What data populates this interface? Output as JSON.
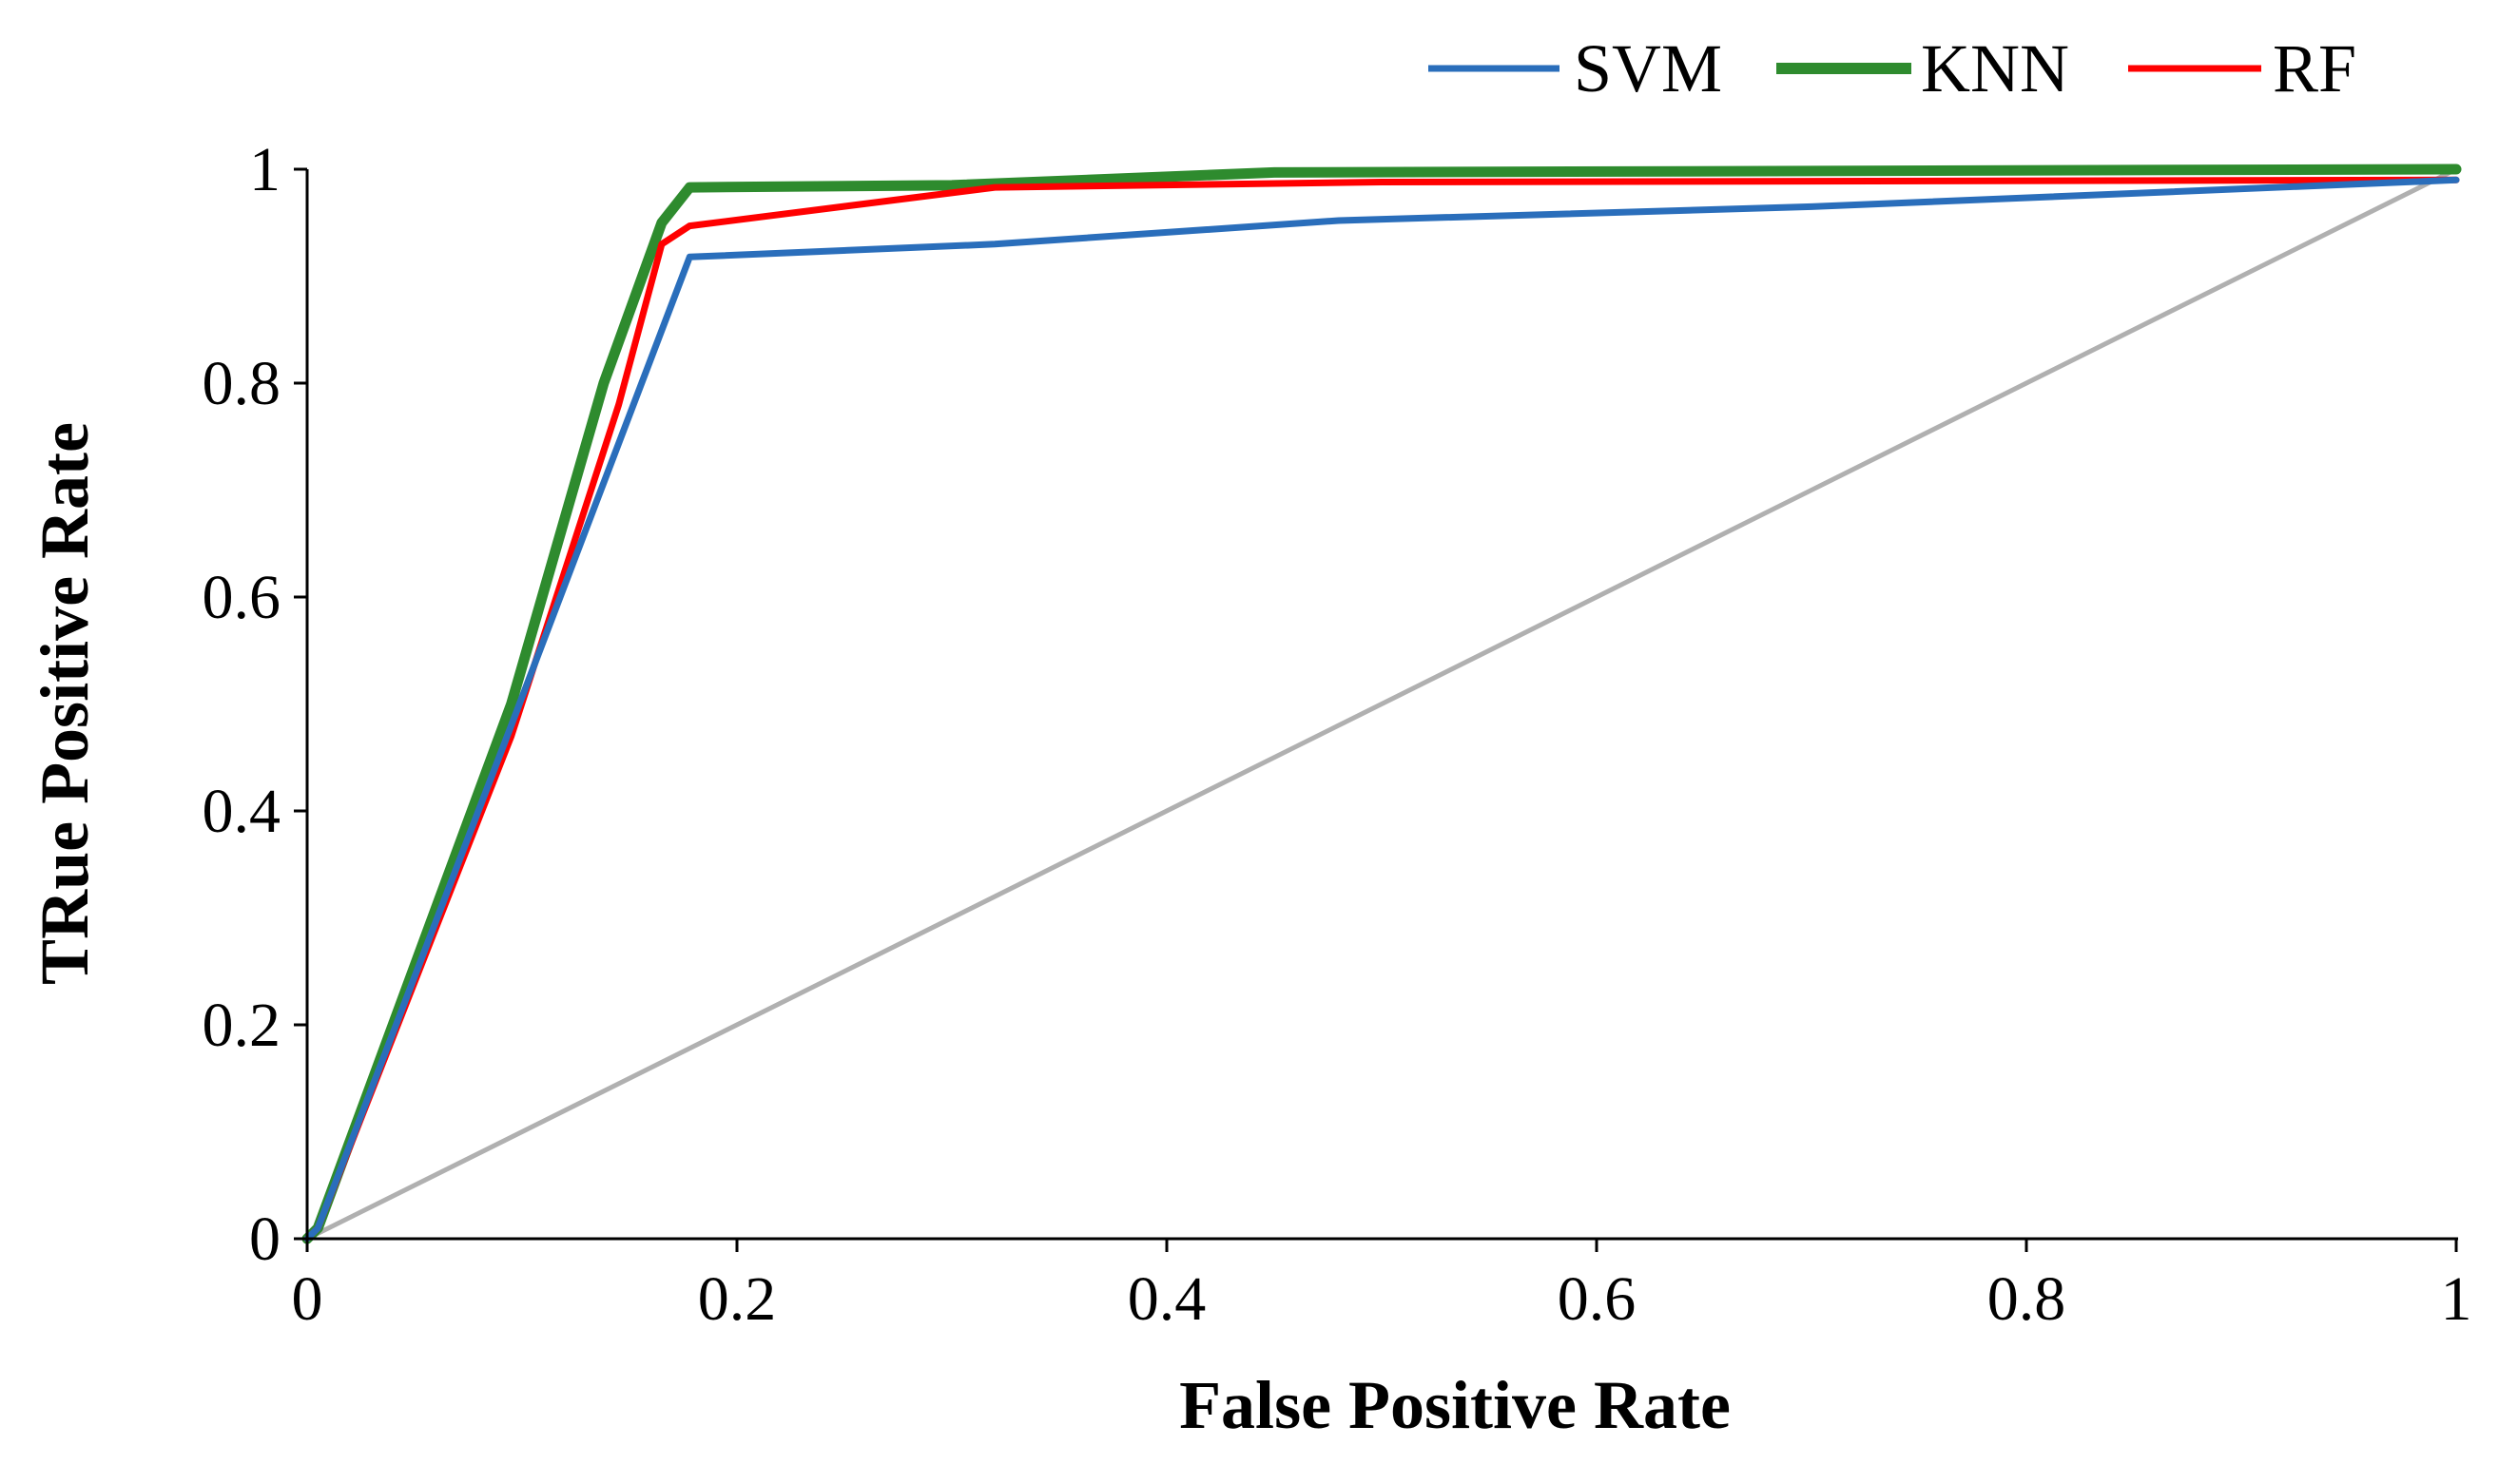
{
  "chart_data": {
    "type": "line",
    "title": "",
    "xlabel": "False Positive Rate",
    "ylabel": "TRue Positive Rate",
    "xlim": [
      0,
      1
    ],
    "ylim": [
      0,
      1
    ],
    "x_ticks": [
      "0",
      "0.2",
      "0.4",
      "0.6",
      "0.8",
      "1"
    ],
    "y_ticks": [
      "0",
      "0.2",
      "0.4",
      "0.6",
      "0.8",
      "1"
    ],
    "grid": false,
    "legend_position": "top-right",
    "series": [
      {
        "name": "SVM",
        "color": "#2a6ebb",
        "points": [
          [
            0,
            0
          ],
          [
            0.005,
            0.01
          ],
          [
            0.095,
            0.48
          ],
          [
            0.178,
            0.918
          ],
          [
            0.32,
            0.93
          ],
          [
            0.48,
            0.952
          ],
          [
            0.7,
            0.965
          ],
          [
            1.0,
            0.99
          ]
        ]
      },
      {
        "name": "KNN",
        "color": "#2e8b2e",
        "points": [
          [
            0,
            0
          ],
          [
            0.005,
            0.01
          ],
          [
            0.095,
            0.5
          ],
          [
            0.138,
            0.8
          ],
          [
            0.165,
            0.95
          ],
          [
            0.178,
            0.983
          ],
          [
            0.3,
            0.985
          ],
          [
            0.45,
            0.997
          ],
          [
            1.0,
            1.0
          ]
        ]
      },
      {
        "name": "RF",
        "color": "#ff0000",
        "points": [
          [
            0,
            0
          ],
          [
            0.005,
            0.01
          ],
          [
            0.095,
            0.47
          ],
          [
            0.145,
            0.78
          ],
          [
            0.165,
            0.93
          ],
          [
            0.178,
            0.947
          ],
          [
            0.32,
            0.983
          ],
          [
            0.5,
            0.988
          ],
          [
            1.0,
            0.99
          ]
        ]
      },
      {
        "name": "",
        "color": "#b0b0b0",
        "points": [
          [
            0,
            0
          ],
          [
            1,
            1
          ]
        ]
      }
    ]
  }
}
